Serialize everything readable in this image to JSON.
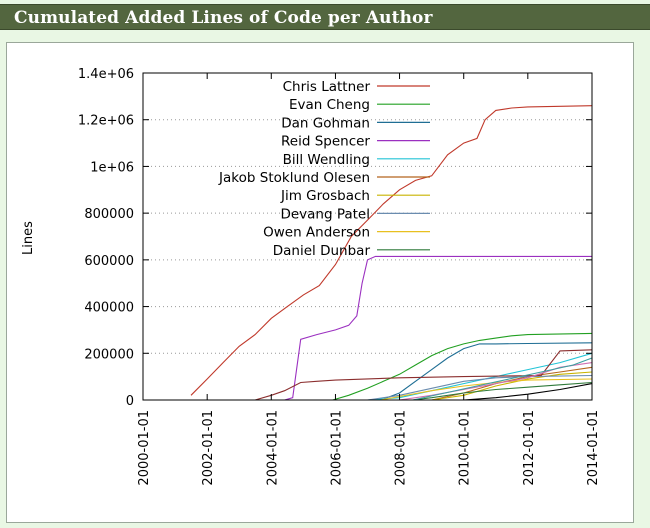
{
  "page": {
    "title": "Cumulated Added Lines of Code per Author"
  },
  "chart_data": {
    "type": "line",
    "ylabel": "Lines",
    "xlabel": "",
    "x_type": "date",
    "xlim": [
      "2000-01-01",
      "2014-01-01"
    ],
    "ylim": [
      0,
      1400000
    ],
    "x_ticks": [
      "2000-01-01",
      "2002-01-01",
      "2004-01-01",
      "2006-01-01",
      "2008-01-01",
      "2010-01-01",
      "2012-01-01",
      "2014-01-01"
    ],
    "y_ticks": [
      0,
      200000,
      400000,
      600000,
      800000,
      1000000,
      1200000,
      1400000
    ],
    "y_tick_labels": [
      "0",
      "200000",
      "400000",
      "600000",
      "800000",
      "1e+06",
      "1.2e+06",
      "1.4e+06"
    ],
    "grid": "horizontal dotted",
    "legend_position": "top-left",
    "series": [
      {
        "name": "Chris Lattner",
        "color": "#c0392b",
        "points": [
          [
            "2001-07-01",
            20000
          ],
          [
            "2002-01-01",
            90000
          ],
          [
            "2002-07-01",
            160000
          ],
          [
            "2003-01-01",
            230000
          ],
          [
            "2003-07-01",
            280000
          ],
          [
            "2004-01-01",
            350000
          ],
          [
            "2004-07-01",
            400000
          ],
          [
            "2005-01-01",
            450000
          ],
          [
            "2005-07-01",
            490000
          ],
          [
            "2006-01-01",
            580000
          ],
          [
            "2006-07-01",
            700000
          ],
          [
            "2007-01-01",
            770000
          ],
          [
            "2007-07-01",
            840000
          ],
          [
            "2008-01-01",
            900000
          ],
          [
            "2008-07-01",
            940000
          ],
          [
            "2009-01-01",
            960000
          ],
          [
            "2009-07-01",
            1050000
          ],
          [
            "2010-01-01",
            1100000
          ],
          [
            "2010-06-01",
            1120000
          ],
          [
            "2010-09-01",
            1200000
          ],
          [
            "2011-01-01",
            1240000
          ],
          [
            "2011-07-01",
            1250000
          ],
          [
            "2012-01-01",
            1255000
          ],
          [
            "2014-01-01",
            1260000
          ]
        ]
      },
      {
        "name": "Evan Cheng",
        "color": "#22a022",
        "points": [
          [
            "2005-12-01",
            0
          ],
          [
            "2006-06-01",
            20000
          ],
          [
            "2007-01-01",
            50000
          ],
          [
            "2007-07-01",
            80000
          ],
          [
            "2008-01-01",
            110000
          ],
          [
            "2008-07-01",
            150000
          ],
          [
            "2009-01-01",
            190000
          ],
          [
            "2009-07-01",
            220000
          ],
          [
            "2010-01-01",
            240000
          ],
          [
            "2010-07-01",
            255000
          ],
          [
            "2011-01-01",
            265000
          ],
          [
            "2011-07-01",
            275000
          ],
          [
            "2012-01-01",
            280000
          ],
          [
            "2014-01-01",
            285000
          ]
        ]
      },
      {
        "name": "Dan Gohman",
        "color": "#1f6e94",
        "points": [
          [
            "2007-06-01",
            0
          ],
          [
            "2008-01-01",
            30000
          ],
          [
            "2008-07-01",
            80000
          ],
          [
            "2009-01-01",
            130000
          ],
          [
            "2009-07-01",
            180000
          ],
          [
            "2010-01-01",
            220000
          ],
          [
            "2010-07-01",
            240000
          ],
          [
            "2011-01-01",
            240000
          ],
          [
            "2012-01-01",
            242000
          ],
          [
            "2014-01-01",
            245000
          ]
        ]
      },
      {
        "name": "Reid Spencer",
        "color": "#9b30c0",
        "points": [
          [
            "2004-06-01",
            0
          ],
          [
            "2004-09-01",
            10000
          ],
          [
            "2004-12-01",
            260000
          ],
          [
            "2005-06-01",
            280000
          ],
          [
            "2006-01-01",
            300000
          ],
          [
            "2006-06-01",
            320000
          ],
          [
            "2006-09-01",
            360000
          ],
          [
            "2006-11-01",
            500000
          ],
          [
            "2007-01-01",
            600000
          ],
          [
            "2007-04-01",
            615000
          ],
          [
            "2014-01-01",
            615000
          ]
        ]
      },
      {
        "name": "Bill Wendling",
        "color": "#22c4d6",
        "points": [
          [
            "2007-01-01",
            0
          ],
          [
            "2008-01-01",
            10000
          ],
          [
            "2009-01-01",
            40000
          ],
          [
            "2010-01-01",
            70000
          ],
          [
            "2011-01-01",
            100000
          ],
          [
            "2012-01-01",
            130000
          ],
          [
            "2013-01-01",
            160000
          ],
          [
            "2014-01-01",
            200000
          ]
        ]
      },
      {
        "name": "Jakob Stoklund Olesen",
        "color": "#b5651d",
        "points": [
          [
            "2009-01-01",
            0
          ],
          [
            "2010-01-01",
            30000
          ],
          [
            "2011-01-01",
            70000
          ],
          [
            "2012-01-01",
            100000
          ],
          [
            "2013-01-01",
            120000
          ],
          [
            "2014-01-01",
            140000
          ]
        ]
      },
      {
        "name": "Jim Grosbach",
        "color": "#c8b400",
        "points": [
          [
            "2009-01-01",
            0
          ],
          [
            "2010-01-01",
            20000
          ],
          [
            "2011-01-01",
            60000
          ],
          [
            "2012-01-01",
            90000
          ],
          [
            "2013-01-01",
            110000
          ],
          [
            "2014-01-01",
            120000
          ]
        ]
      },
      {
        "name": "Devang Patel",
        "color": "#6a8caf",
        "points": [
          [
            "2007-01-01",
            0
          ],
          [
            "2008-01-01",
            20000
          ],
          [
            "2009-01-01",
            50000
          ],
          [
            "2010-01-01",
            80000
          ],
          [
            "2011-01-01",
            95000
          ],
          [
            "2012-01-01",
            100000
          ],
          [
            "2014-01-01",
            105000
          ]
        ]
      },
      {
        "name": "Owen Anderson",
        "color": "#e8c020",
        "points": [
          [
            "2007-06-01",
            0
          ],
          [
            "2008-01-01",
            15000
          ],
          [
            "2009-01-01",
            40000
          ],
          [
            "2010-01-01",
            60000
          ],
          [
            "2011-01-01",
            75000
          ],
          [
            "2012-01-01",
            85000
          ],
          [
            "2014-01-01",
            90000
          ]
        ]
      },
      {
        "name": "Daniel Dunbar",
        "color": "#2f7a3a",
        "points": [
          [
            "2008-06-01",
            0
          ],
          [
            "2009-01-01",
            10000
          ],
          [
            "2010-01-01",
            30000
          ],
          [
            "2011-01-01",
            45000
          ],
          [
            "2012-01-01",
            55000
          ],
          [
            "2013-01-01",
            65000
          ],
          [
            "2014-01-01",
            75000
          ]
        ]
      },
      {
        "name": "",
        "color": "#8b2e2e",
        "points": [
          [
            "2003-07-01",
            0
          ],
          [
            "2004-01-01",
            20000
          ],
          [
            "2004-06-01",
            40000
          ],
          [
            "2004-12-01",
            75000
          ],
          [
            "2005-06-01",
            80000
          ],
          [
            "2006-01-01",
            85000
          ],
          [
            "2008-01-01",
            95000
          ],
          [
            "2010-01-01",
            100000
          ],
          [
            "2012-06-01",
            105000
          ],
          [
            "2013-01-01",
            210000
          ],
          [
            "2014-01-01",
            215000
          ]
        ]
      },
      {
        "name": "",
        "color": "#000000",
        "points": [
          [
            "2010-01-01",
            0
          ],
          [
            "2011-01-01",
            10000
          ],
          [
            "2012-01-01",
            25000
          ],
          [
            "2013-01-01",
            45000
          ],
          [
            "2014-01-01",
            70000
          ]
        ]
      },
      {
        "name": "",
        "color": "#d070b0",
        "points": [
          [
            "2008-01-01",
            0
          ],
          [
            "2009-01-01",
            20000
          ],
          [
            "2010-01-01",
            45000
          ],
          [
            "2011-01-01",
            70000
          ],
          [
            "2012-01-01",
            95000
          ],
          [
            "2013-01-01",
            140000
          ],
          [
            "2014-01-01",
            160000
          ]
        ]
      },
      {
        "name": "",
        "color": "#3aa0a0",
        "points": [
          [
            "2008-06-01",
            0
          ],
          [
            "2009-06-01",
            30000
          ],
          [
            "2010-06-01",
            60000
          ],
          [
            "2011-06-01",
            90000
          ],
          [
            "2012-06-01",
            120000
          ],
          [
            "2013-06-01",
            150000
          ],
          [
            "2014-01-01",
            180000
          ]
        ]
      }
    ]
  }
}
